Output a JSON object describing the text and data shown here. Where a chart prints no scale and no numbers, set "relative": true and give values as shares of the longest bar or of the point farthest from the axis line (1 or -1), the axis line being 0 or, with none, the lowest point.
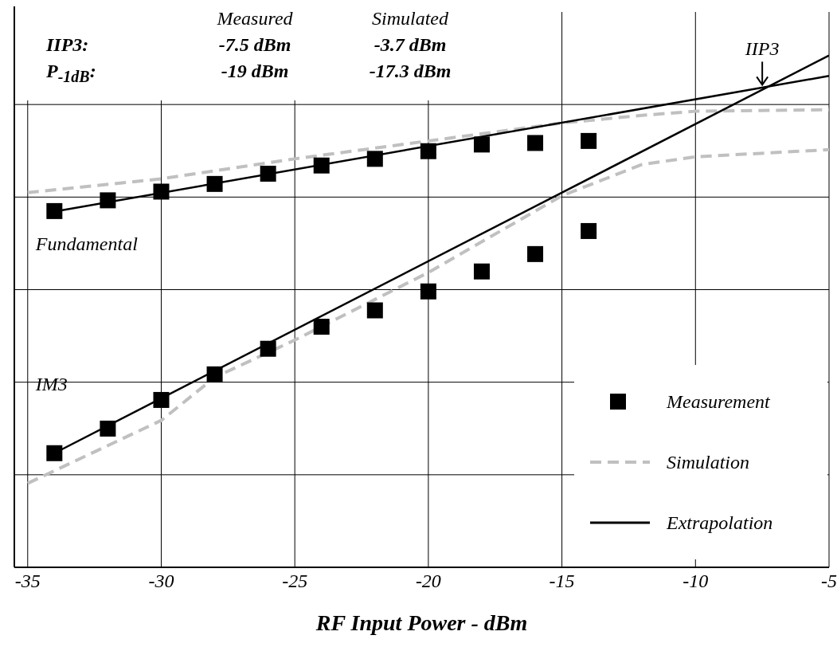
{
  "chart_data": {
    "type": "line",
    "xlabel": "RF Input Power - dBm",
    "relative": true,
    "xlim": [
      -35.5,
      -5
    ],
    "xticks": [
      -35,
      -30,
      -25,
      -20,
      -15,
      -10,
      -5
    ],
    "grid": true,
    "legend": "bottom right",
    "series": [
      {
        "name": "Measurement",
        "type": "scatter",
        "marker": "square",
        "color": "#000000",
        "x": [
          -34,
          -32,
          -30,
          -28,
          -26,
          -24,
          -22,
          -20,
          -18,
          -16,
          -14
        ],
        "values": [
          0.696,
          0.717,
          0.734,
          0.749,
          0.769,
          0.785,
          0.798,
          0.813,
          0.826,
          0.829,
          0.833
        ]
      },
      {
        "type": "scatter",
        "marker": "square",
        "color": "#000000",
        "x": [
          -34,
          -32,
          -30,
          -28,
          -26,
          -24,
          -22,
          -20,
          -18,
          -16,
          -14
        ],
        "values": [
          0.223,
          0.271,
          0.327,
          0.377,
          0.427,
          0.47,
          0.502,
          0.539,
          0.578,
          0.612,
          0.657
        ]
      },
      {
        "name": "Simulation",
        "line_style": "dashed",
        "marker": "none",
        "color": "#c0c0c0",
        "x": [
          -35,
          -30,
          -25,
          -20,
          -15,
          -12,
          -10,
          -5
        ],
        "values": [
          0.732,
          0.759,
          0.798,
          0.833,
          0.868,
          0.883,
          0.891,
          0.894
        ]
      },
      {
        "line_style": "dashed",
        "marker": "none",
        "color": "#c0c0c0",
        "x": [
          -35,
          -30,
          -28,
          -25,
          -20,
          -15,
          -12,
          -10,
          -5
        ],
        "values": [
          0.164,
          0.287,
          0.371,
          0.444,
          0.576,
          0.726,
          0.787,
          0.802,
          0.816
        ]
      },
      {
        "name": "Extrapolation",
        "line_style": "solid",
        "marker": "none",
        "color": "#000000",
        "x": [
          -34,
          -5
        ],
        "values": [
          0.695,
          0.96
        ]
      },
      {
        "line_style": "solid",
        "marker": "none",
        "color": "#000000",
        "x": [
          -34,
          -5
        ],
        "values": [
          0.223,
          1.0
        ]
      }
    ],
    "annotations": [
      "Measured",
      "Simulated",
      "IIP3:",
      "-7.5 dBm",
      "-3.7 dBm",
      "P$_{-1dB}$:",
      "-19 dBm",
      "-17.3 dBm",
      {
        "text": "IIP3",
        "x": -7.5,
        "y": 0.938
      },
      "Fundamental",
      "IM3"
    ]
  }
}
